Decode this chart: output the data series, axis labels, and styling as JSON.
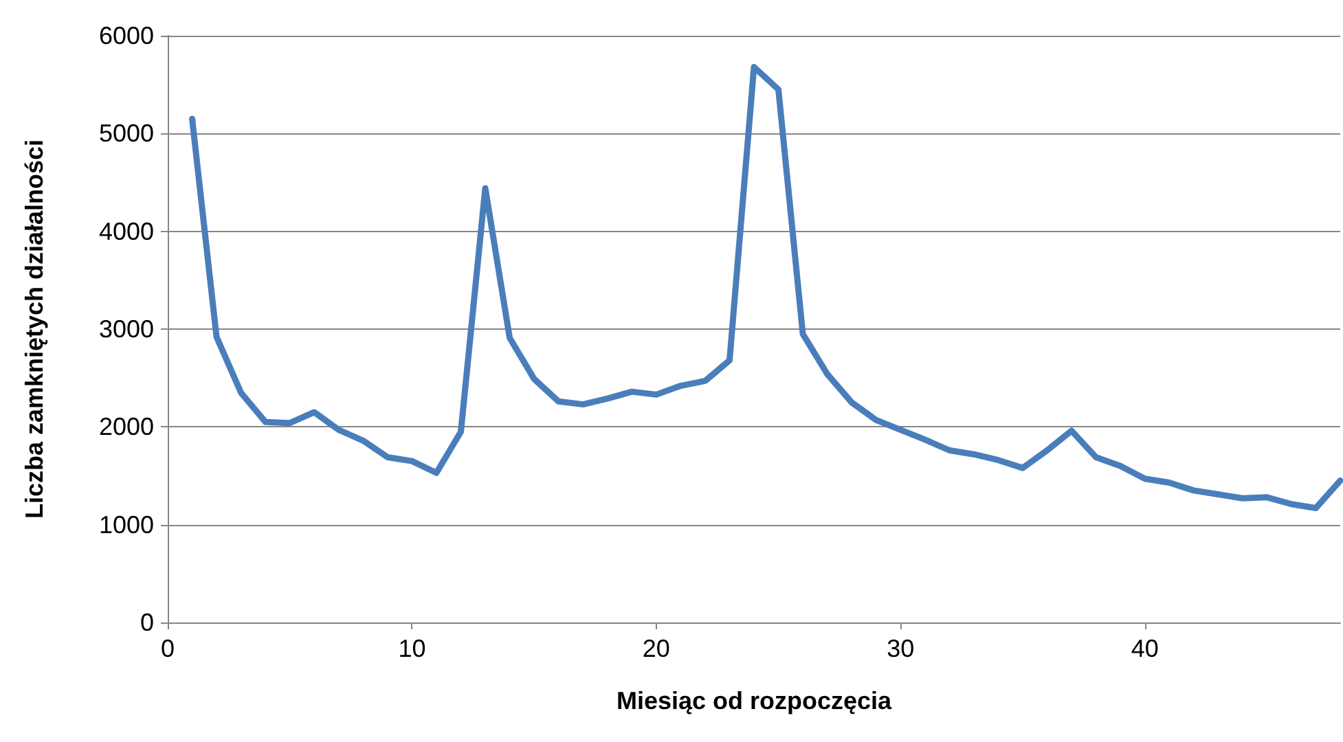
{
  "chart_data": {
    "type": "line",
    "xlabel": "Miesiąc od rozpoczęcia",
    "ylabel": "Liczba zamkniętych działalności",
    "x": [
      1,
      2,
      3,
      4,
      5,
      6,
      7,
      8,
      9,
      10,
      11,
      12,
      13,
      14,
      15,
      16,
      17,
      18,
      19,
      20,
      21,
      22,
      23,
      24,
      25,
      26,
      27,
      28,
      29,
      30,
      31,
      32,
      33,
      34,
      35,
      36,
      37,
      38,
      39,
      40,
      41,
      42,
      43,
      44,
      45,
      46,
      47,
      48
    ],
    "series": [
      {
        "color": "#4a7ebb",
        "values": [
          5150,
          2920,
          2350,
          2050,
          2040,
          2150,
          1970,
          1860,
          1690,
          1650,
          1530,
          1950,
          4440,
          2910,
          2490,
          2260,
          2230,
          2290,
          2360,
          2330,
          2420,
          2470,
          2680,
          5680,
          5450,
          2950,
          2540,
          2250,
          2070,
          1970,
          1870,
          1760,
          1720,
          1660,
          1580,
          1760,
          1960,
          1690,
          1600,
          1470,
          1430,
          1350,
          1310,
          1270,
          1280,
          1210,
          1170,
          1450
        ]
      }
    ],
    "xlim": [
      0,
      48
    ],
    "xticks": [
      0,
      10,
      20,
      30,
      40
    ],
    "ylim": [
      0,
      6000
    ],
    "yticks": [
      0,
      1000,
      2000,
      3000,
      4000,
      5000,
      6000
    ],
    "grid": "y",
    "marker": "none",
    "line_style": "solid"
  }
}
